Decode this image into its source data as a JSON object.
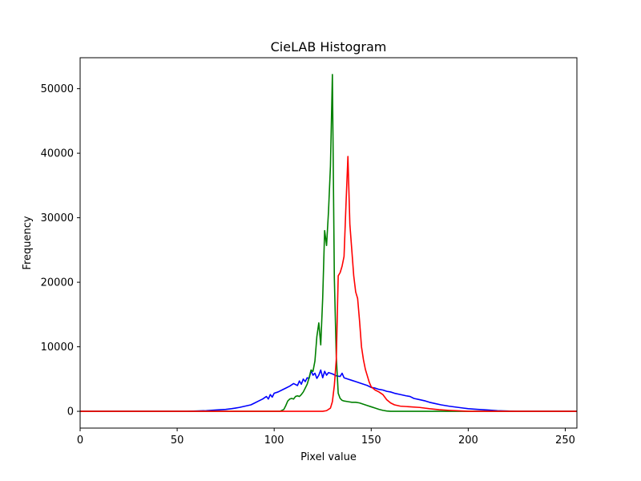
{
  "chart_data": {
    "type": "line",
    "title": "CieLAB Histogram",
    "xlabel": "Pixel value",
    "ylabel": "Frequency",
    "xlim": [
      0,
      256
    ],
    "ylim": [
      -2600,
      54800
    ],
    "xticks": [
      0,
      50,
      100,
      150,
      200,
      250
    ],
    "yticks": [
      0,
      10000,
      20000,
      30000,
      40000,
      50000
    ],
    "grid": false,
    "legend": "none",
    "series": [
      {
        "color": "#0000ff",
        "points": [
          [
            0,
            0
          ],
          [
            55,
            0
          ],
          [
            60,
            50
          ],
          [
            65,
            100
          ],
          [
            70,
            200
          ],
          [
            75,
            300
          ],
          [
            78,
            400
          ],
          [
            80,
            500
          ],
          [
            82,
            600
          ],
          [
            85,
            800
          ],
          [
            88,
            1000
          ],
          [
            90,
            1300
          ],
          [
            92,
            1600
          ],
          [
            94,
            1900
          ],
          [
            96,
            2300
          ],
          [
            97,
            1900
          ],
          [
            98,
            2600
          ],
          [
            99,
            2200
          ],
          [
            100,
            2800
          ],
          [
            102,
            3000
          ],
          [
            104,
            3300
          ],
          [
            106,
            3600
          ],
          [
            108,
            3900
          ],
          [
            110,
            4300
          ],
          [
            112,
            4000
          ],
          [
            113,
            4700
          ],
          [
            114,
            4200
          ],
          [
            115,
            5000
          ],
          [
            116,
            4600
          ],
          [
            117,
            5200
          ],
          [
            118,
            5100
          ],
          [
            119,
            6300
          ],
          [
            120,
            5600
          ],
          [
            121,
            5900
          ],
          [
            122,
            5100
          ],
          [
            123,
            5600
          ],
          [
            124,
            6400
          ],
          [
            125,
            5200
          ],
          [
            126,
            6200
          ],
          [
            127,
            5600
          ],
          [
            128,
            6000
          ],
          [
            130,
            5800
          ],
          [
            132,
            5500
          ],
          [
            134,
            5400
          ],
          [
            135,
            5900
          ],
          [
            136,
            5200
          ],
          [
            138,
            5000
          ],
          [
            140,
            4800
          ],
          [
            142,
            4600
          ],
          [
            144,
            4400
          ],
          [
            146,
            4200
          ],
          [
            148,
            4000
          ],
          [
            150,
            3700
          ],
          [
            152,
            3600
          ],
          [
            154,
            3400
          ],
          [
            156,
            3300
          ],
          [
            158,
            3100
          ],
          [
            160,
            3000
          ],
          [
            162,
            2800
          ],
          [
            165,
            2600
          ],
          [
            168,
            2400
          ],
          [
            170,
            2300
          ],
          [
            172,
            2000
          ],
          [
            175,
            1800
          ],
          [
            178,
            1600
          ],
          [
            180,
            1400
          ],
          [
            183,
            1200
          ],
          [
            186,
            1000
          ],
          [
            190,
            800
          ],
          [
            195,
            600
          ],
          [
            200,
            400
          ],
          [
            205,
            300
          ],
          [
            210,
            200
          ],
          [
            215,
            100
          ],
          [
            220,
            50
          ],
          [
            225,
            0
          ],
          [
            256,
            0
          ]
        ]
      },
      {
        "color": "#008000",
        "points": [
          [
            0,
            0
          ],
          [
            100,
            0
          ],
          [
            103,
            0
          ],
          [
            105,
            300
          ],
          [
            106,
            900
          ],
          [
            107,
            1600
          ],
          [
            108,
            1900
          ],
          [
            109,
            2000
          ],
          [
            110,
            1900
          ],
          [
            111,
            2300
          ],
          [
            112,
            2400
          ],
          [
            113,
            2300
          ],
          [
            114,
            2600
          ],
          [
            115,
            3000
          ],
          [
            116,
            3600
          ],
          [
            117,
            4200
          ],
          [
            118,
            5200
          ],
          [
            119,
            6400
          ],
          [
            120,
            6200
          ],
          [
            121,
            7800
          ],
          [
            122,
            11600
          ],
          [
            123,
            13700
          ],
          [
            124,
            10300
          ],
          [
            125,
            17500
          ],
          [
            126,
            28000
          ],
          [
            127,
            25700
          ],
          [
            128,
            31000
          ],
          [
            129,
            38000
          ],
          [
            130,
            52200
          ],
          [
            131,
            20700
          ],
          [
            132,
            8500
          ],
          [
            133,
            2800
          ],
          [
            134,
            2000
          ],
          [
            135,
            1700
          ],
          [
            136,
            1600
          ],
          [
            138,
            1500
          ],
          [
            140,
            1400
          ],
          [
            142,
            1400
          ],
          [
            144,
            1300
          ],
          [
            146,
            1100
          ],
          [
            148,
            900
          ],
          [
            150,
            700
          ],
          [
            152,
            500
          ],
          [
            154,
            300
          ],
          [
            156,
            150
          ],
          [
            158,
            50
          ],
          [
            160,
            0
          ],
          [
            256,
            0
          ]
        ]
      },
      {
        "color": "#ff0000",
        "points": [
          [
            0,
            0
          ],
          [
            125,
            0
          ],
          [
            127,
            100
          ],
          [
            129,
            500
          ],
          [
            130,
            1500
          ],
          [
            131,
            4000
          ],
          [
            132,
            8000
          ],
          [
            133,
            21000
          ],
          [
            134,
            21500
          ],
          [
            135,
            22500
          ],
          [
            136,
            24000
          ],
          [
            137,
            32000
          ],
          [
            138,
            39500
          ],
          [
            139,
            29000
          ],
          [
            140,
            25000
          ],
          [
            141,
            21000
          ],
          [
            142,
            18500
          ],
          [
            143,
            17500
          ],
          [
            144,
            14000
          ],
          [
            145,
            10000
          ],
          [
            146,
            8000
          ],
          [
            147,
            6500
          ],
          [
            148,
            5500
          ],
          [
            149,
            4500
          ],
          [
            150,
            3800
          ],
          [
            152,
            3300
          ],
          [
            154,
            3000
          ],
          [
            156,
            2600
          ],
          [
            157,
            2200
          ],
          [
            158,
            1800
          ],
          [
            160,
            1300
          ],
          [
            162,
            1000
          ],
          [
            165,
            800
          ],
          [
            170,
            700
          ],
          [
            175,
            600
          ],
          [
            180,
            400
          ],
          [
            185,
            250
          ],
          [
            190,
            150
          ],
          [
            195,
            80
          ],
          [
            200,
            0
          ],
          [
            256,
            0
          ]
        ]
      }
    ]
  }
}
